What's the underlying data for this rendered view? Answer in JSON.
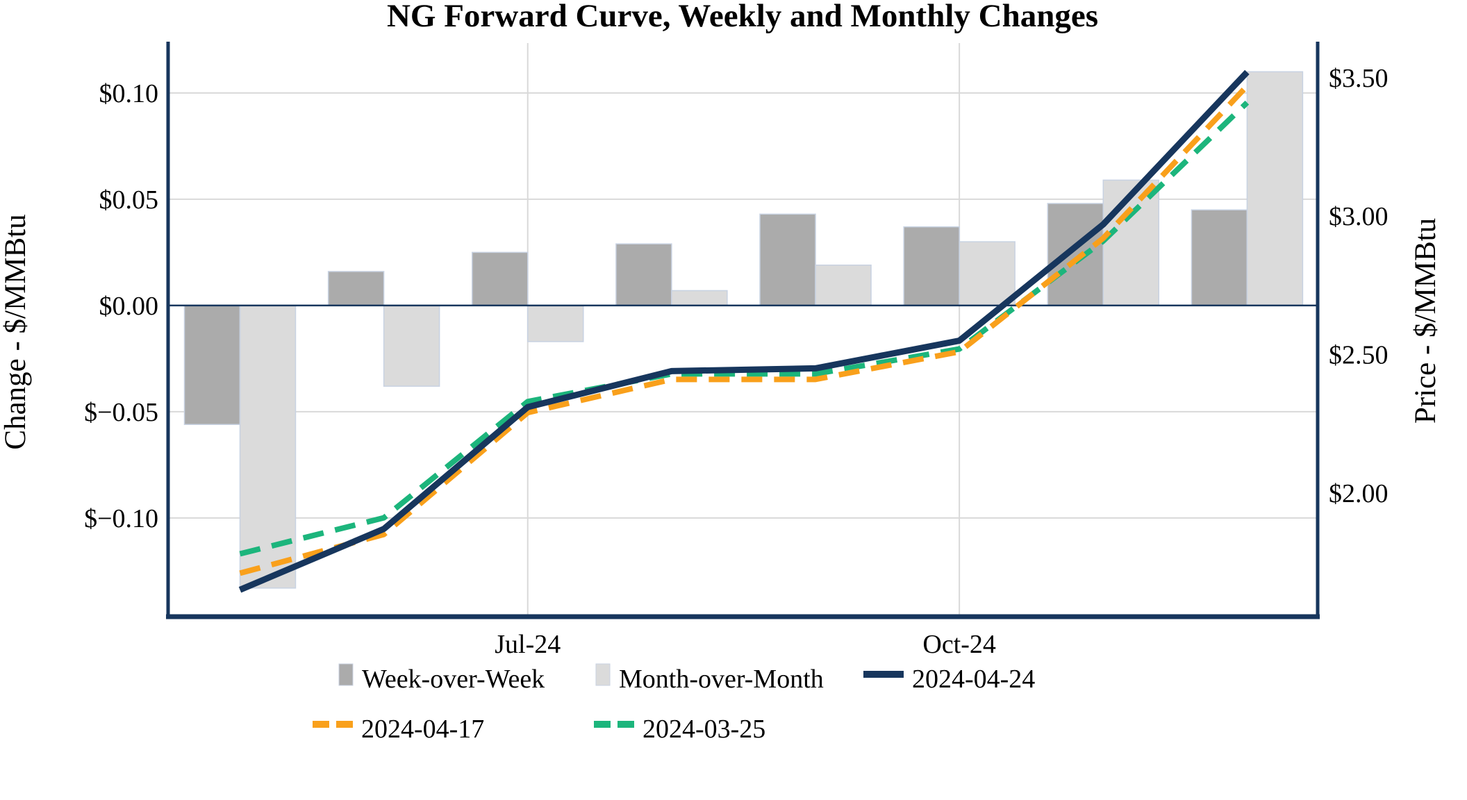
{
  "title": "NG Forward Curve, Weekly and Monthly Changes",
  "chart_data": {
    "type": "combo_bar_line",
    "title": "NG Forward Curve, Weekly and Monthly Changes",
    "categories": [
      "1",
      "2",
      "3",
      "4",
      "5",
      "6",
      "7",
      "8"
    ],
    "x_axis": {
      "tick_labels": [
        {
          "label": "Jul-24",
          "category_index": 2
        },
        {
          "label": "Oct-24",
          "category_index": 5
        }
      ]
    },
    "left_axis": {
      "title": "Change - $/MMBtu",
      "tick_labels": [
        "$0.10",
        "$0.05",
        "$0.00",
        "$−0.05",
        "$−0.10"
      ],
      "tick_values": [
        0.1,
        0.05,
        0.0,
        -0.05,
        -0.1
      ],
      "range": [
        -0.1458,
        0.1235
      ],
      "gridlines": true
    },
    "right_axis": {
      "title": "Price - $/MMBtu",
      "tick_labels": [
        "$3.50",
        "$3.00",
        "$2.50",
        "$2.00"
      ],
      "tick_values": [
        3.5,
        3.0,
        2.5,
        2.0
      ],
      "range": [
        1.558,
        3.625
      ]
    },
    "bar_series": [
      {
        "name": "Week-over-Week",
        "axis": "left",
        "color": "#ABABAB",
        "values": [
          -0.056,
          0.016,
          0.025,
          0.029,
          0.043,
          0.037,
          0.048,
          0.045
        ]
      },
      {
        "name": "Month-over-Month",
        "axis": "left",
        "color": "#DBDBDB",
        "values": [
          -0.133,
          -0.038,
          -0.017,
          0.007,
          0.019,
          0.03,
          0.059,
          0.11
        ]
      }
    ],
    "line_series": [
      {
        "name": "2024-03-25",
        "axis": "right",
        "color": "#1CB57C",
        "style": "dashed",
        "values": [
          1.78,
          1.91,
          2.33,
          2.43,
          2.43,
          2.52,
          2.91,
          3.41
        ]
      },
      {
        "name": "2024-04-17",
        "axis": "right",
        "color": "#F9A01B",
        "style": "dashed",
        "values": [
          1.71,
          1.85,
          2.29,
          2.41,
          2.41,
          2.51,
          2.92,
          3.47
        ]
      },
      {
        "name": "2024-04-24",
        "axis": "right",
        "color": "#17365D",
        "style": "solid",
        "values": [
          1.65,
          1.87,
          2.31,
          2.44,
          2.45,
          2.55,
          2.97,
          3.52
        ]
      }
    ],
    "legend": {
      "position": "bottom",
      "rows": [
        [
          "Week-over-Week",
          "Month-over-Month",
          "2024-04-24"
        ],
        [
          "2024-04-17",
          "2024-03-25"
        ]
      ]
    },
    "colors": {
      "axis_line": "#17365D",
      "zero_line": "#17365D",
      "gridline": "#D9D9D9",
      "bar_border": "#C8D2E2"
    }
  }
}
